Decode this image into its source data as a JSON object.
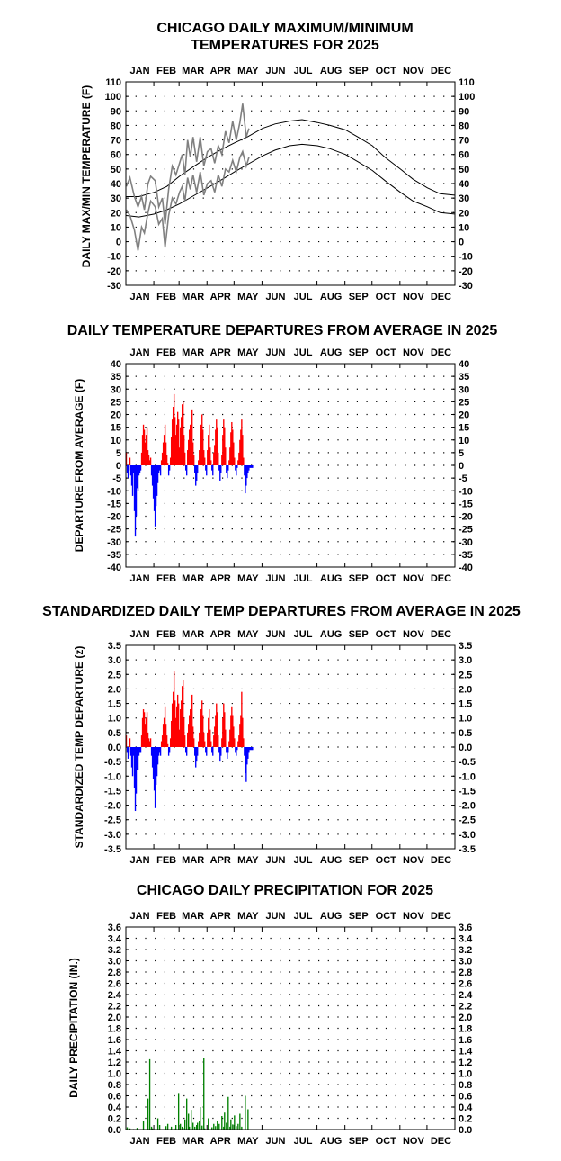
{
  "chart_data": [
    {
      "type": "line",
      "title_lines": [
        "CHICAGO DAILY MAXIMUM/MINIMUM",
        "TEMPERATURES FOR 2025"
      ],
      "ylabel": "DAILY MAX/MIN TEMPERATURE (F)",
      "months": [
        "JAN",
        "FEB",
        "MAR",
        "APR",
        "MAY",
        "JUN",
        "JUL",
        "AUG",
        "SEP",
        "OCT",
        "NOV",
        "DEC"
      ],
      "ylim": [
        -30,
        110
      ],
      "ytick_labels": [
        "110",
        "100",
        "90",
        "80",
        "70",
        "60",
        "50",
        "40",
        "30",
        "20",
        "10",
        "0",
        "-10",
        "-20",
        "-30"
      ],
      "normal_high": {
        "x": [
          1,
          15,
          32,
          46,
          60,
          74,
          91,
          105,
          121,
          135,
          152,
          166,
          182,
          196,
          213,
          227,
          244,
          258,
          274,
          288,
          305,
          319,
          335,
          349,
          365
        ],
        "y": [
          31,
          31,
          34,
          38,
          45,
          51,
          58,
          63,
          68,
          72,
          78,
          81,
          83,
          84,
          82,
          80,
          77,
          72,
          66,
          58,
          50,
          43,
          37,
          33,
          32
        ]
      },
      "normal_low": {
        "x": [
          1,
          15,
          32,
          46,
          60,
          74,
          91,
          105,
          121,
          135,
          152,
          166,
          182,
          196,
          213,
          227,
          244,
          258,
          274,
          288,
          305,
          319,
          335,
          349,
          365
        ],
        "y": [
          18,
          17,
          19,
          22,
          26,
          31,
          37,
          42,
          48,
          53,
          59,
          63,
          66,
          67,
          66,
          64,
          60,
          55,
          49,
          42,
          34,
          28,
          24,
          20,
          19
        ]
      },
      "observed_high": {
        "x": [
          1,
          5,
          10,
          14,
          18,
          21,
          25,
          28,
          33,
          37,
          41,
          44,
          48,
          52,
          56,
          60,
          63,
          66,
          69,
          72,
          75,
          79,
          83,
          87,
          91,
          95,
          99,
          103,
          107,
          111,
          115,
          119,
          123,
          127,
          130,
          134,
          137
        ],
        "y": [
          38,
          44,
          31,
          24,
          31,
          22,
          40,
          45,
          42,
          24,
          30,
          12,
          36,
          52,
          46,
          54,
          60,
          46,
          70,
          58,
          72,
          55,
          72,
          52,
          62,
          64,
          54,
          66,
          60,
          76,
          68,
          83,
          70,
          82,
          95,
          72,
          78
        ]
      },
      "observed_low": {
        "x": [
          1,
          5,
          10,
          14,
          18,
          21,
          25,
          28,
          33,
          37,
          41,
          44,
          48,
          52,
          56,
          60,
          63,
          66,
          69,
          72,
          75,
          79,
          83,
          87,
          91,
          95,
          99,
          103,
          107,
          111,
          115,
          119,
          123,
          127,
          130,
          134,
          137
        ],
        "y": [
          22,
          18,
          8,
          -6,
          10,
          6,
          20,
          28,
          24,
          12,
          16,
          -4,
          18,
          30,
          26,
          34,
          38,
          28,
          44,
          36,
          46,
          34,
          48,
          32,
          40,
          42,
          34,
          46,
          38,
          50,
          48,
          56,
          48,
          58,
          62,
          52,
          58
        ]
      },
      "colors": {
        "normal": "#000000",
        "observed": "#808080"
      }
    },
    {
      "type": "bar",
      "title": "DAILY TEMPERATURE DEPARTURES FROM AVERAGE IN 2025",
      "ylabel": "DEPARTURE FROM AVERAGE (F)",
      "months": [
        "JAN",
        "FEB",
        "MAR",
        "APR",
        "MAY",
        "JUN",
        "JUL",
        "AUG",
        "SEP",
        "OCT",
        "NOV",
        "DEC"
      ],
      "ylim": [
        -40,
        40
      ],
      "ytick_labels": [
        "40",
        "35",
        "30",
        "25",
        "20",
        "15",
        "10",
        "5",
        "0",
        "-5",
        "-10",
        "-15",
        "-20",
        "-25",
        "-30",
        "-35",
        "-40"
      ],
      "days": [
        1,
        2,
        3,
        4,
        5,
        6,
        7,
        8,
        9,
        10,
        11,
        12,
        13,
        14,
        15,
        16,
        17,
        18,
        19,
        20,
        21,
        22,
        23,
        24,
        25,
        26,
        27,
        28,
        29,
        30,
        31,
        32,
        33,
        34,
        35,
        36,
        37,
        38,
        39,
        40,
        41,
        42,
        43,
        44,
        45,
        46,
        47,
        48,
        49,
        50,
        51,
        52,
        53,
        54,
        55,
        56,
        57,
        58,
        59,
        60,
        61,
        62,
        63,
        64,
        65,
        66,
        67,
        68,
        69,
        70,
        71,
        72,
        73,
        74,
        75,
        76,
        77,
        78,
        79,
        80,
        81,
        82,
        83,
        84,
        85,
        86,
        87,
        88,
        89,
        90,
        91,
        92,
        93,
        94,
        95,
        96,
        97,
        98,
        99,
        100,
        101,
        102,
        103,
        104,
        105,
        106,
        107,
        108,
        109,
        110,
        111,
        112,
        113,
        114,
        115,
        116,
        117,
        118,
        119,
        120,
        121,
        122,
        123,
        124,
        125,
        126,
        127,
        128,
        129,
        130,
        131,
        132,
        133,
        134,
        135,
        136,
        137,
        138,
        139,
        140,
        141
      ],
      "values": [
        5,
        -3,
        -5,
        -2,
        3,
        -4,
        -8,
        -12,
        -3,
        -18,
        -28,
        -20,
        -9,
        -10,
        -4,
        -3,
        -2,
        5,
        12,
        16,
        14,
        9,
        12,
        15,
        6,
        4,
        2,
        3,
        -4,
        -8,
        -13,
        -18,
        -24,
        -16,
        -12,
        -7,
        -3,
        -2,
        -4,
        2,
        5,
        9,
        12,
        16,
        9,
        4,
        1,
        -4,
        -2,
        3,
        11,
        18,
        23,
        28,
        19,
        12,
        16,
        21,
        18,
        7,
        15,
        19,
        24,
        25,
        12,
        5,
        -2,
        -4,
        6,
        10,
        14,
        16,
        19,
        22,
        9,
        4,
        -3,
        -8,
        -6,
        -3,
        2,
        6,
        13,
        16,
        20,
        14,
        6,
        3,
        -2,
        -4,
        6,
        12,
        16,
        7,
        2,
        -2,
        -4,
        5,
        8,
        14,
        18,
        15,
        5,
        -2,
        -6,
        -3,
        4,
        12,
        18,
        15,
        7,
        -3,
        -5,
        -2,
        2,
        7,
        13,
        17,
        14,
        9,
        3,
        -2,
        -4,
        -1,
        2,
        5,
        10,
        14,
        18,
        12,
        3,
        -4,
        -11,
        -8,
        -5,
        -3,
        -2,
        -1,
        -1,
        -1,
        -1
      ],
      "colors": {
        "positive": "#ff0000",
        "negative": "#0000ff"
      }
    },
    {
      "type": "bar",
      "title": "STANDARDIZED DAILY TEMP DEPARTURES FROM AVERAGE IN 2025",
      "ylabel": "STANDARDIZED TEMP DEPARTURE (z)",
      "months": [
        "JAN",
        "FEB",
        "MAR",
        "APR",
        "MAY",
        "JUN",
        "JUL",
        "AUG",
        "SEP",
        "OCT",
        "NOV",
        "DEC"
      ],
      "ylim": [
        -3.5,
        3.5
      ],
      "ytick_labels": [
        "3.5",
        "3.0",
        "2.5",
        "2.0",
        "1.5",
        "1.0",
        "0.5",
        "0.0",
        "-0.5",
        "-1.0",
        "-1.5",
        "-2.0",
        "-2.5",
        "-3.0",
        "-3.5"
      ],
      "days": [
        1,
        2,
        3,
        4,
        5,
        6,
        7,
        8,
        9,
        10,
        11,
        12,
        13,
        14,
        15,
        16,
        17,
        18,
        19,
        20,
        21,
        22,
        23,
        24,
        25,
        26,
        27,
        28,
        29,
        30,
        31,
        32,
        33,
        34,
        35,
        36,
        37,
        38,
        39,
        40,
        41,
        42,
        43,
        44,
        45,
        46,
        47,
        48,
        49,
        50,
        51,
        52,
        53,
        54,
        55,
        56,
        57,
        58,
        59,
        60,
        61,
        62,
        63,
        64,
        65,
        66,
        67,
        68,
        69,
        70,
        71,
        72,
        73,
        74,
        75,
        76,
        77,
        78,
        79,
        80,
        81,
        82,
        83,
        84,
        85,
        86,
        87,
        88,
        89,
        90,
        91,
        92,
        93,
        94,
        95,
        96,
        97,
        98,
        99,
        100,
        101,
        102,
        103,
        104,
        105,
        106,
        107,
        108,
        109,
        110,
        111,
        112,
        113,
        114,
        115,
        116,
        117,
        118,
        119,
        120,
        121,
        122,
        123,
        124,
        125,
        126,
        127,
        128,
        129,
        130,
        131,
        132,
        133,
        134,
        135,
        136,
        137,
        138,
        139,
        140,
        141
      ],
      "values": [
        0.4,
        -0.2,
        -0.4,
        -0.2,
        0.3,
        -0.3,
        -0.7,
        -1.0,
        -0.3,
        -1.4,
        -2.2,
        -1.6,
        -0.8,
        -0.8,
        -0.3,
        -0.2,
        -0.2,
        0.4,
        1.0,
        1.3,
        1.2,
        0.8,
        1.0,
        1.2,
        0.5,
        0.3,
        0.2,
        0.3,
        -0.3,
        -0.7,
        -1.1,
        -1.5,
        -2.1,
        -1.3,
        -1.0,
        -0.6,
        -0.3,
        -0.2,
        -0.3,
        0.2,
        0.4,
        0.8,
        1.0,
        1.4,
        0.8,
        0.4,
        0.1,
        -0.3,
        -0.2,
        0.3,
        0.9,
        1.5,
        1.9,
        2.6,
        1.6,
        1.0,
        1.4,
        1.8,
        1.5,
        0.6,
        1.3,
        1.6,
        2.1,
        2.3,
        1.0,
        0.4,
        -0.2,
        -0.3,
        0.5,
        0.8,
        1.1,
        1.3,
        1.5,
        1.8,
        0.7,
        0.3,
        -0.3,
        -0.7,
        -0.5,
        -0.3,
        0.2,
        0.5,
        1.1,
        1.3,
        1.6,
        1.1,
        0.5,
        0.2,
        -0.2,
        -0.3,
        0.5,
        1.0,
        1.3,
        0.6,
        0.2,
        -0.2,
        -0.3,
        0.4,
        0.7,
        1.1,
        1.5,
        1.2,
        0.4,
        -0.2,
        -0.5,
        -0.3,
        0.3,
        1.0,
        1.5,
        1.2,
        0.6,
        -0.2,
        -0.4,
        -0.2,
        0.2,
        0.6,
        1.1,
        1.4,
        1.1,
        0.7,
        0.3,
        -0.2,
        -0.3,
        -0.1,
        0.2,
        0.4,
        0.8,
        1.1,
        1.9,
        1.0,
        0.3,
        -0.3,
        -0.9,
        -1.2,
        -0.6,
        -0.4,
        -0.2,
        -0.1,
        -0.1,
        -0.1,
        -0.1
      ],
      "colors": {
        "positive": "#ff0000",
        "negative": "#0000ff"
      }
    },
    {
      "type": "bar",
      "title": "CHICAGO DAILY PRECIPITATION FOR 2025",
      "ylabel": "DAILY PRECIPITATION (IN.)",
      "months": [
        "JAN",
        "FEB",
        "MAR",
        "APR",
        "MAY",
        "JUN",
        "JUL",
        "AUG",
        "SEP",
        "OCT",
        "NOV",
        "DEC"
      ],
      "ylim": [
        0,
        3.6
      ],
      "ytick_labels": [
        "3.6",
        "3.4",
        "3.2",
        "3.0",
        "2.8",
        "2.6",
        "2.4",
        "2.2",
        "2.0",
        "1.8",
        "1.6",
        "1.4",
        "1.2",
        "1.0",
        "0.8",
        "0.6",
        "0.4",
        "0.2",
        "0.0"
      ],
      "days": [
        2,
        5,
        9,
        13,
        20,
        25,
        27,
        29,
        30,
        36,
        38,
        45,
        47,
        51,
        54,
        56,
        59,
        61,
        63,
        64,
        66,
        68,
        70,
        71,
        73,
        75,
        77,
        79,
        80,
        82,
        83,
        85,
        87,
        88,
        92,
        96,
        98,
        100,
        102,
        104,
        107,
        109,
        110,
        112,
        114,
        116,
        117,
        119,
        121,
        123,
        125,
        127,
        129,
        133,
        136
      ],
      "values": [
        0.04,
        0.02,
        0.01,
        0.03,
        0.15,
        0.55,
        1.25,
        0.05,
        0.02,
        0.2,
        0.08,
        0.06,
        0.1,
        0.05,
        0.02,
        0.08,
        0.65,
        0.1,
        0.05,
        0.03,
        0.18,
        0.55,
        0.28,
        0.05,
        0.35,
        0.12,
        0.05,
        0.08,
        0.12,
        0.15,
        0.4,
        0.07,
        1.28,
        0.02,
        0.2,
        0.04,
        0.1,
        0.06,
        0.15,
        0.1,
        0.24,
        0.05,
        0.3,
        0.12,
        0.58,
        0.05,
        0.18,
        0.09,
        0.25,
        0.06,
        0.1,
        0.28,
        0.05,
        0.6,
        0.36
      ],
      "colors": {
        "bar": "#008000"
      }
    }
  ]
}
